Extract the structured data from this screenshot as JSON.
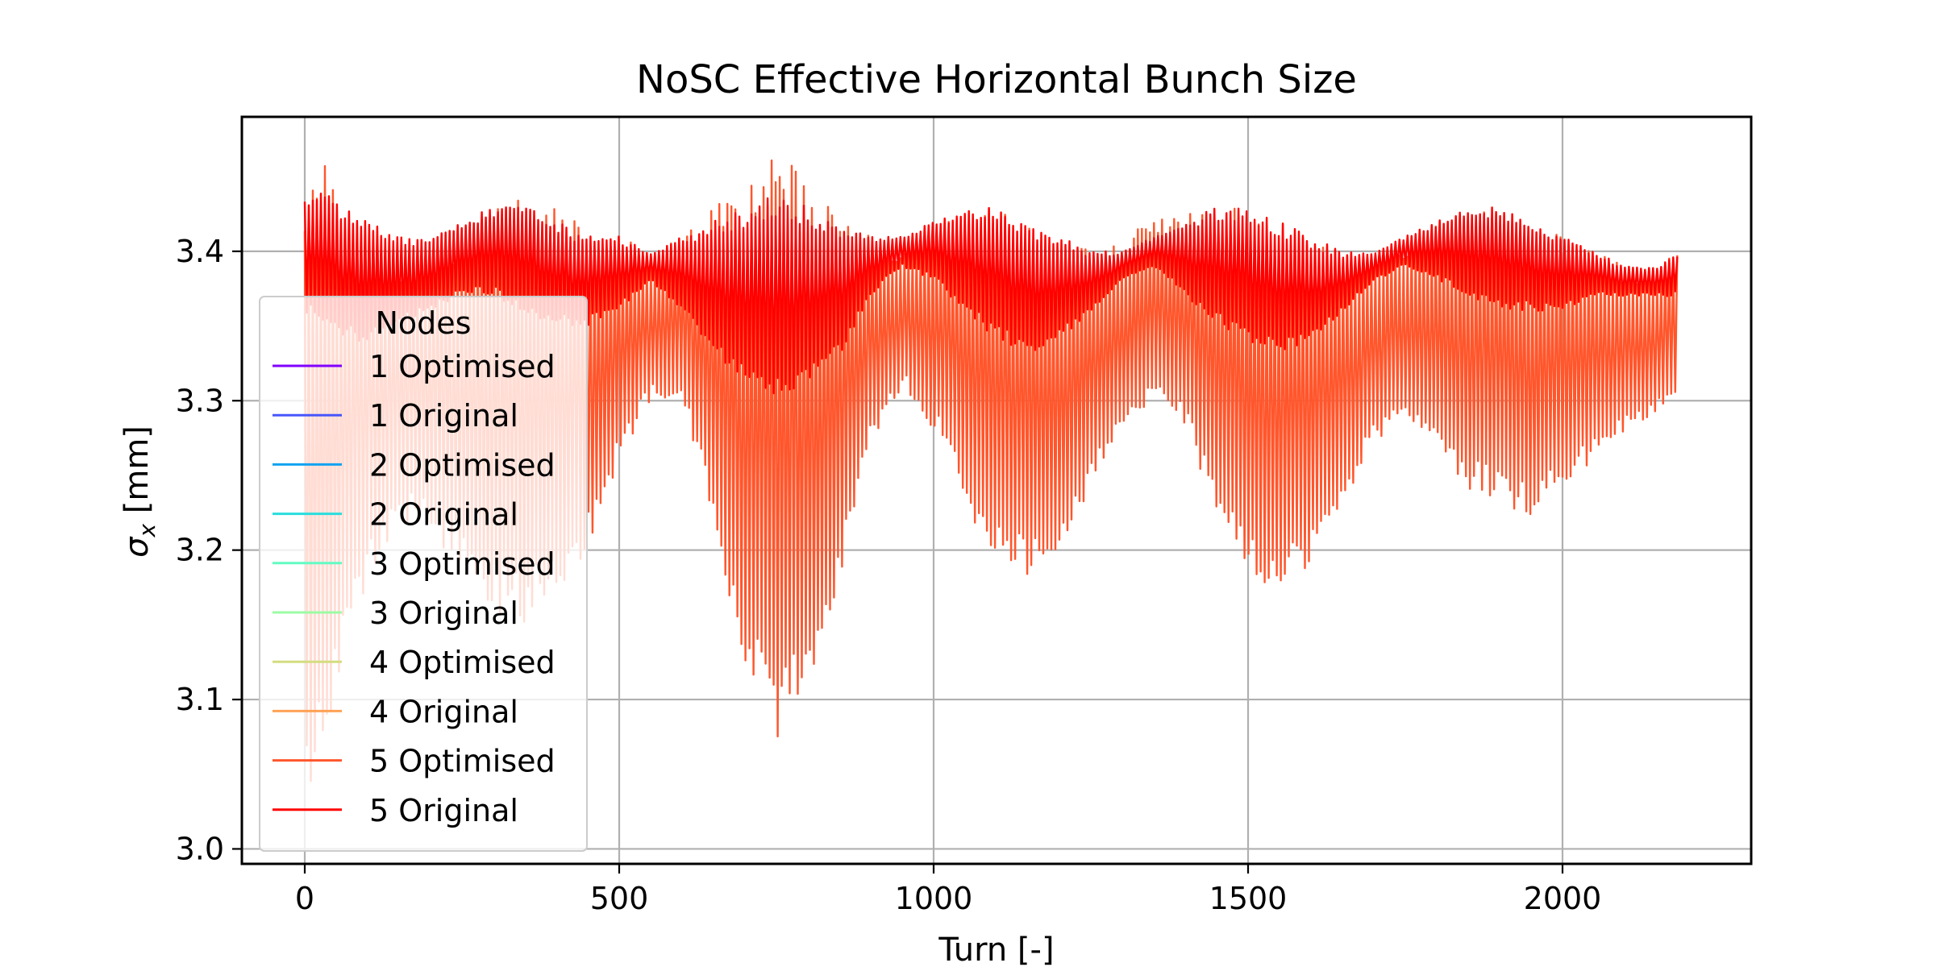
{
  "chart_data": {
    "type": "line",
    "title": "NoSC Effective Horizontal Bunch Size",
    "xlabel": "Turn [-]",
    "ylabel_symbol": "σ",
    "ylabel_sub": "x",
    "ylabel_unit": " [mm]",
    "xlim": [
      -100,
      2300
    ],
    "ylim": [
      2.99,
      3.49
    ],
    "xticks": [
      0,
      500,
      1000,
      1500,
      2000
    ],
    "xtick_labels": [
      "0",
      "500",
      "1000",
      "1500",
      "2000"
    ],
    "yticks": [
      3.0,
      3.1,
      3.2,
      3.3,
      3.4
    ],
    "ytick_labels": [
      "3.0",
      "3.1",
      "3.2",
      "3.3",
      "3.4"
    ],
    "grid": true,
    "legend_title": "Nodes",
    "legend_position": "lower-left",
    "series": [
      {
        "name": "1 Optimised",
        "color": "#8000ff"
      },
      {
        "name": "1 Original",
        "color": "#4856fb"
      },
      {
        "name": "2 Optimised",
        "color": "#10a2f0"
      },
      {
        "name": "2 Original",
        "color": "#2adddd"
      },
      {
        "name": "3 Optimised",
        "color": "#62fbc4"
      },
      {
        "name": "3 Original",
        "color": "#9cfba4"
      },
      {
        "name": "4 Optimised",
        "color": "#d4dd80"
      },
      {
        "name": "4 Original",
        "color": "#ffa256"
      },
      {
        "name": "5 Optimised",
        "color": "#ff562c",
        "x_range": [
          0,
          2185
        ],
        "envelope_x": [
          0,
          30,
          60,
          100,
          150,
          200,
          250,
          300,
          350,
          400,
          450,
          500,
          550,
          600,
          650,
          700,
          750,
          800,
          850,
          900,
          950,
          1000,
          1050,
          1100,
          1150,
          1200,
          1250,
          1300,
          1350,
          1400,
          1450,
          1500,
          1550,
          1600,
          1650,
          1700,
          1750,
          1800,
          1850,
          1900,
          1950,
          2000,
          2050,
          2100,
          2150,
          2185
        ],
        "upper": [
          3.46,
          3.47,
          3.44,
          3.41,
          3.4,
          3.41,
          3.42,
          3.43,
          3.44,
          3.43,
          3.42,
          3.41,
          3.4,
          3.41,
          3.43,
          3.45,
          3.465,
          3.45,
          3.42,
          3.41,
          3.4,
          3.42,
          3.43,
          3.43,
          3.42,
          3.41,
          3.4,
          3.41,
          3.42,
          3.43,
          3.43,
          3.43,
          3.42,
          3.41,
          3.4,
          3.4,
          3.41,
          3.42,
          3.43,
          3.43,
          3.42,
          3.41,
          3.4,
          3.39,
          3.39,
          3.4
        ],
        "lower": [
          3.02,
          3.06,
          3.12,
          3.18,
          3.22,
          3.21,
          3.19,
          3.16,
          3.15,
          3.17,
          3.2,
          3.26,
          3.3,
          3.3,
          3.22,
          3.12,
          3.07,
          3.1,
          3.18,
          3.27,
          3.31,
          3.28,
          3.23,
          3.19,
          3.18,
          3.2,
          3.24,
          3.28,
          3.3,
          3.28,
          3.22,
          3.18,
          3.17,
          3.19,
          3.23,
          3.27,
          3.29,
          3.27,
          3.24,
          3.23,
          3.22,
          3.24,
          3.26,
          3.28,
          3.29,
          3.3
        ]
      },
      {
        "name": "5 Original",
        "color": "#ff0000",
        "x_range": [
          0,
          2185
        ],
        "envelope_x": [
          0,
          30,
          60,
          100,
          150,
          200,
          250,
          300,
          350,
          400,
          450,
          500,
          550,
          600,
          650,
          700,
          750,
          800,
          850,
          900,
          950,
          1000,
          1050,
          1100,
          1150,
          1200,
          1250,
          1300,
          1350,
          1400,
          1450,
          1500,
          1550,
          1600,
          1650,
          1700,
          1750,
          1800,
          1850,
          1900,
          1950,
          2000,
          2050,
          2100,
          2150,
          2185
        ],
        "upper": [
          3.44,
          3.44,
          3.43,
          3.42,
          3.41,
          3.41,
          3.42,
          3.43,
          3.43,
          3.42,
          3.41,
          3.41,
          3.4,
          3.41,
          3.42,
          3.43,
          3.44,
          3.43,
          3.42,
          3.41,
          3.41,
          3.42,
          3.43,
          3.43,
          3.42,
          3.41,
          3.4,
          3.4,
          3.41,
          3.42,
          3.43,
          3.43,
          3.42,
          3.41,
          3.4,
          3.4,
          3.41,
          3.42,
          3.43,
          3.43,
          3.42,
          3.41,
          3.4,
          3.39,
          3.39,
          3.4
        ],
        "lower": [
          3.36,
          3.35,
          3.34,
          3.34,
          3.35,
          3.36,
          3.37,
          3.37,
          3.36,
          3.35,
          3.35,
          3.36,
          3.38,
          3.36,
          3.33,
          3.31,
          3.3,
          3.31,
          3.33,
          3.37,
          3.39,
          3.38,
          3.36,
          3.34,
          3.33,
          3.34,
          3.36,
          3.38,
          3.39,
          3.37,
          3.35,
          3.34,
          3.33,
          3.34,
          3.36,
          3.38,
          3.39,
          3.38,
          3.37,
          3.36,
          3.36,
          3.36,
          3.37,
          3.37,
          3.37,
          3.37
        ]
      }
    ]
  }
}
